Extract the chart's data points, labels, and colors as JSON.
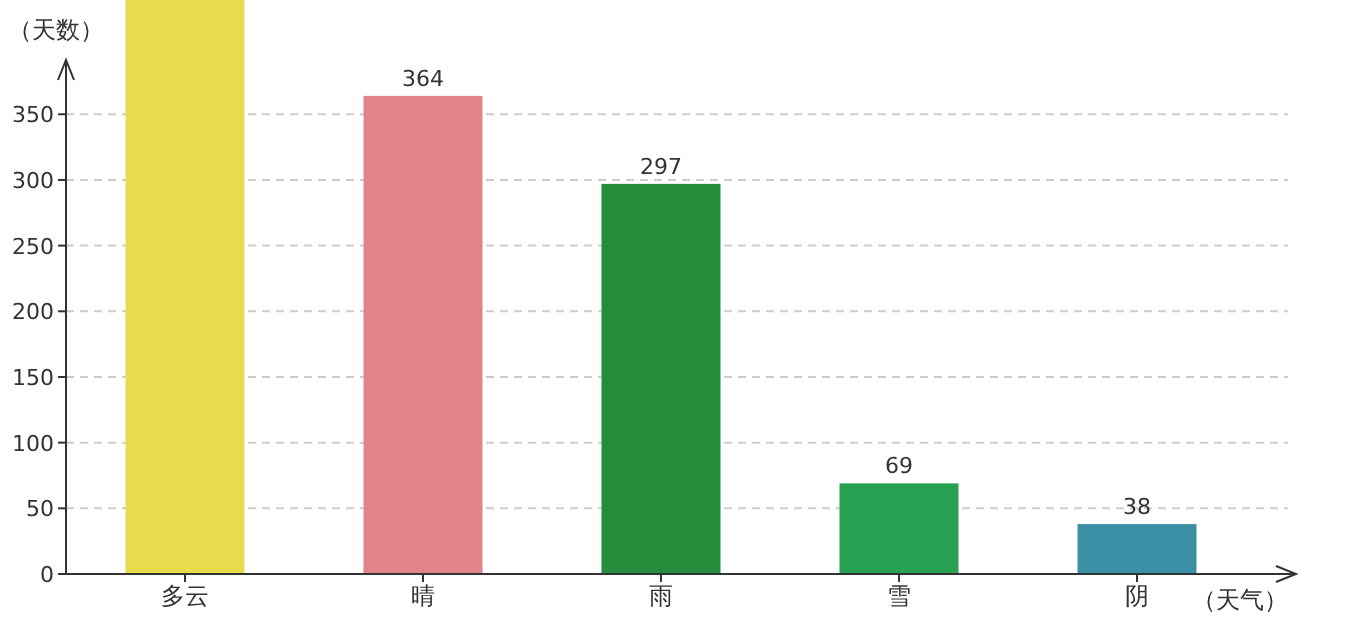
{
  "chart_data": {
    "type": "bar",
    "xlabel": "（天气）",
    "ylabel": "（天数）",
    "categories": [
      "多云",
      "晴",
      "雨",
      "雪",
      "阴"
    ],
    "values": [
      437,
      364,
      297,
      69,
      38
    ],
    "colors": [
      "#e8dc4c",
      "#e0848a",
      "#258c3c",
      "#27a052",
      "#3a8fa5"
    ],
    "value_labels": [
      null,
      "364",
      "297",
      "69",
      "38"
    ],
    "ylim": [
      0,
      437
    ],
    "yticks": [
      0,
      50,
      100,
      150,
      200,
      250,
      300,
      350
    ],
    "grid": "y"
  }
}
